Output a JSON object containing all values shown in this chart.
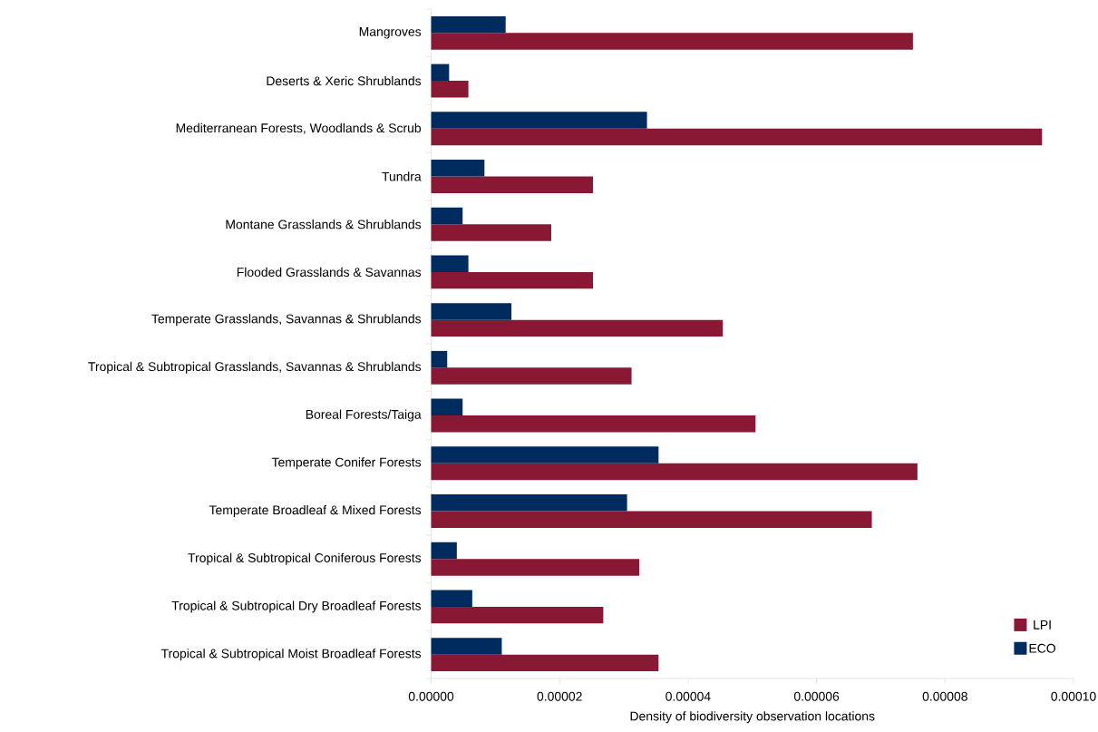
{
  "chart_data": {
    "type": "bar",
    "orientation": "horizontal",
    "xlabel": "Density of biodiversity observation locations",
    "categories": [
      "Mangroves",
      "Deserts & Xeric Shrublands",
      "Mediterranean Forests, Woodlands & Scrub",
      "Tundra",
      "Montane Grasslands & Shrublands",
      "Flooded Grasslands & Savannas",
      "Temperate Grasslands, Savannas & Shrublands",
      "Tropical & Subtropical Grasslands, Savannas & Shrublands",
      "Boreal Forests/Taiga",
      "Temperate Conifer Forests",
      "Temperate Broadleaf & Mixed Forests",
      "Tropical & Subtropical Coniferous Forests",
      "Tropical & Subtropical Dry Broadleaf Forests",
      "Tropical & Subtropical Moist Broadleaf Forests"
    ],
    "series": [
      {
        "name": "LPI",
        "color": "#891834",
        "values": [
          7.5e-05,
          5.8e-06,
          9.51e-05,
          2.52e-05,
          1.87e-05,
          2.52e-05,
          4.54e-05,
          3.12e-05,
          5.05e-05,
          7.57e-05,
          6.86e-05,
          3.24e-05,
          2.68e-05,
          3.54e-05
        ]
      },
      {
        "name": "ECO",
        "color": "#002b5f",
        "values": [
          1.16e-05,
          2.8e-06,
          3.36e-05,
          8.3e-06,
          4.9e-06,
          5.8e-06,
          1.25e-05,
          2.5e-06,
          4.9e-06,
          3.54e-05,
          3.05e-05,
          4e-06,
          6.4e-06,
          1.1e-05
        ]
      }
    ],
    "xlim": [
      0,
      0.0001
    ],
    "xticks": [
      {
        "value": 0,
        "label": "0.00000"
      },
      {
        "value": 2e-05,
        "label": "0.00002"
      },
      {
        "value": 4e-05,
        "label": "0.00004"
      },
      {
        "value": 6e-05,
        "label": "0.00006"
      },
      {
        "value": 8e-05,
        "label": "0.00008"
      },
      {
        "value": 0.0001,
        "label": "0.00010"
      }
    ],
    "grid": false,
    "legend": "bottom right"
  }
}
